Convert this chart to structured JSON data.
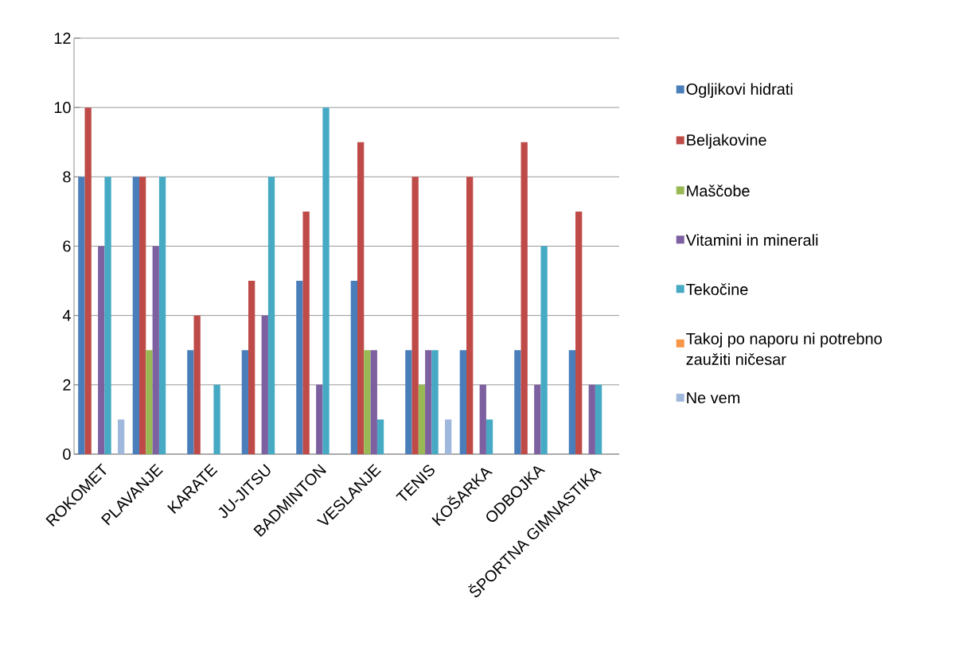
{
  "chart_data": {
    "type": "bar",
    "categories": [
      "ROKOMET",
      "PLAVANJE",
      "KARATE",
      "JU-JITSU",
      "BADMINTON",
      "VESLANJE",
      "TENIS",
      "KOŠARKA",
      "ODBOJKA",
      "ŠPORTNA GIMNASTIKA"
    ],
    "series": [
      {
        "name": "Ogljikovi hidrati",
        "color": "#4a7ebb",
        "values": [
          8,
          8,
          3,
          3,
          5,
          5,
          3,
          3,
          3,
          3
        ]
      },
      {
        "name": "Beljakovine",
        "color": "#be4b48",
        "values": [
          10,
          8,
          4,
          5,
          7,
          9,
          8,
          8,
          9,
          7
        ]
      },
      {
        "name": "Maščobe",
        "color": "#98b954",
        "values": [
          0,
          3,
          0,
          0,
          0,
          3,
          2,
          0,
          0,
          0
        ]
      },
      {
        "name": "Vitamini in minerali",
        "color": "#7d60a0",
        "values": [
          6,
          6,
          0,
          4,
          2,
          3,
          3,
          2,
          2,
          2
        ]
      },
      {
        "name": "Tekočine",
        "color": "#46aac5",
        "values": [
          8,
          8,
          2,
          8,
          10,
          1,
          3,
          1,
          6,
          2
        ]
      },
      {
        "name": "Takoj po naporu ni potrebno zaužiti ničesar",
        "color": "#f79646",
        "values": [
          0,
          0,
          0,
          0,
          0,
          0,
          0,
          0,
          0,
          0
        ]
      },
      {
        "name": "Ne vem",
        "color": "#a0b8dc",
        "values": [
          1,
          0,
          0,
          0,
          0,
          0,
          1,
          0,
          0,
          0
        ]
      }
    ],
    "ylim": [
      0,
      12
    ],
    "yticks": [
      0,
      2,
      4,
      6,
      8,
      10,
      12
    ],
    "grid": "y",
    "legend": "right"
  }
}
